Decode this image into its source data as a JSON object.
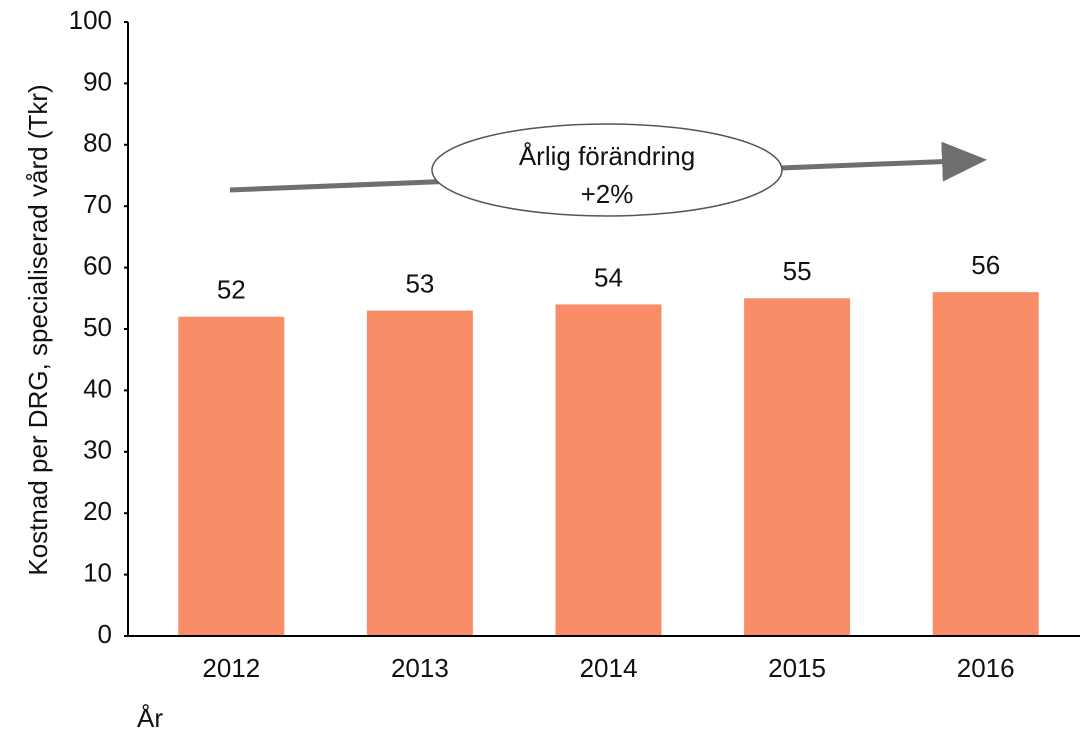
{
  "chart_data": {
    "type": "bar",
    "y_label": "Kostnad per DRG, specialiserad vård (Tkr)",
    "x_label": "År",
    "annotation": [
      "Årlig förändring",
      "+2%"
    ],
    "categories": [
      "2012",
      "2013",
      "2014",
      "2015",
      "2016"
    ],
    "values": [
      52,
      53,
      54,
      55,
      56
    ],
    "color": "#f88d67",
    "ylim": [
      0,
      100
    ],
    "yticks": [
      0,
      10,
      20,
      30,
      40,
      50,
      60,
      70,
      80,
      90,
      100
    ],
    "grid": false
  }
}
